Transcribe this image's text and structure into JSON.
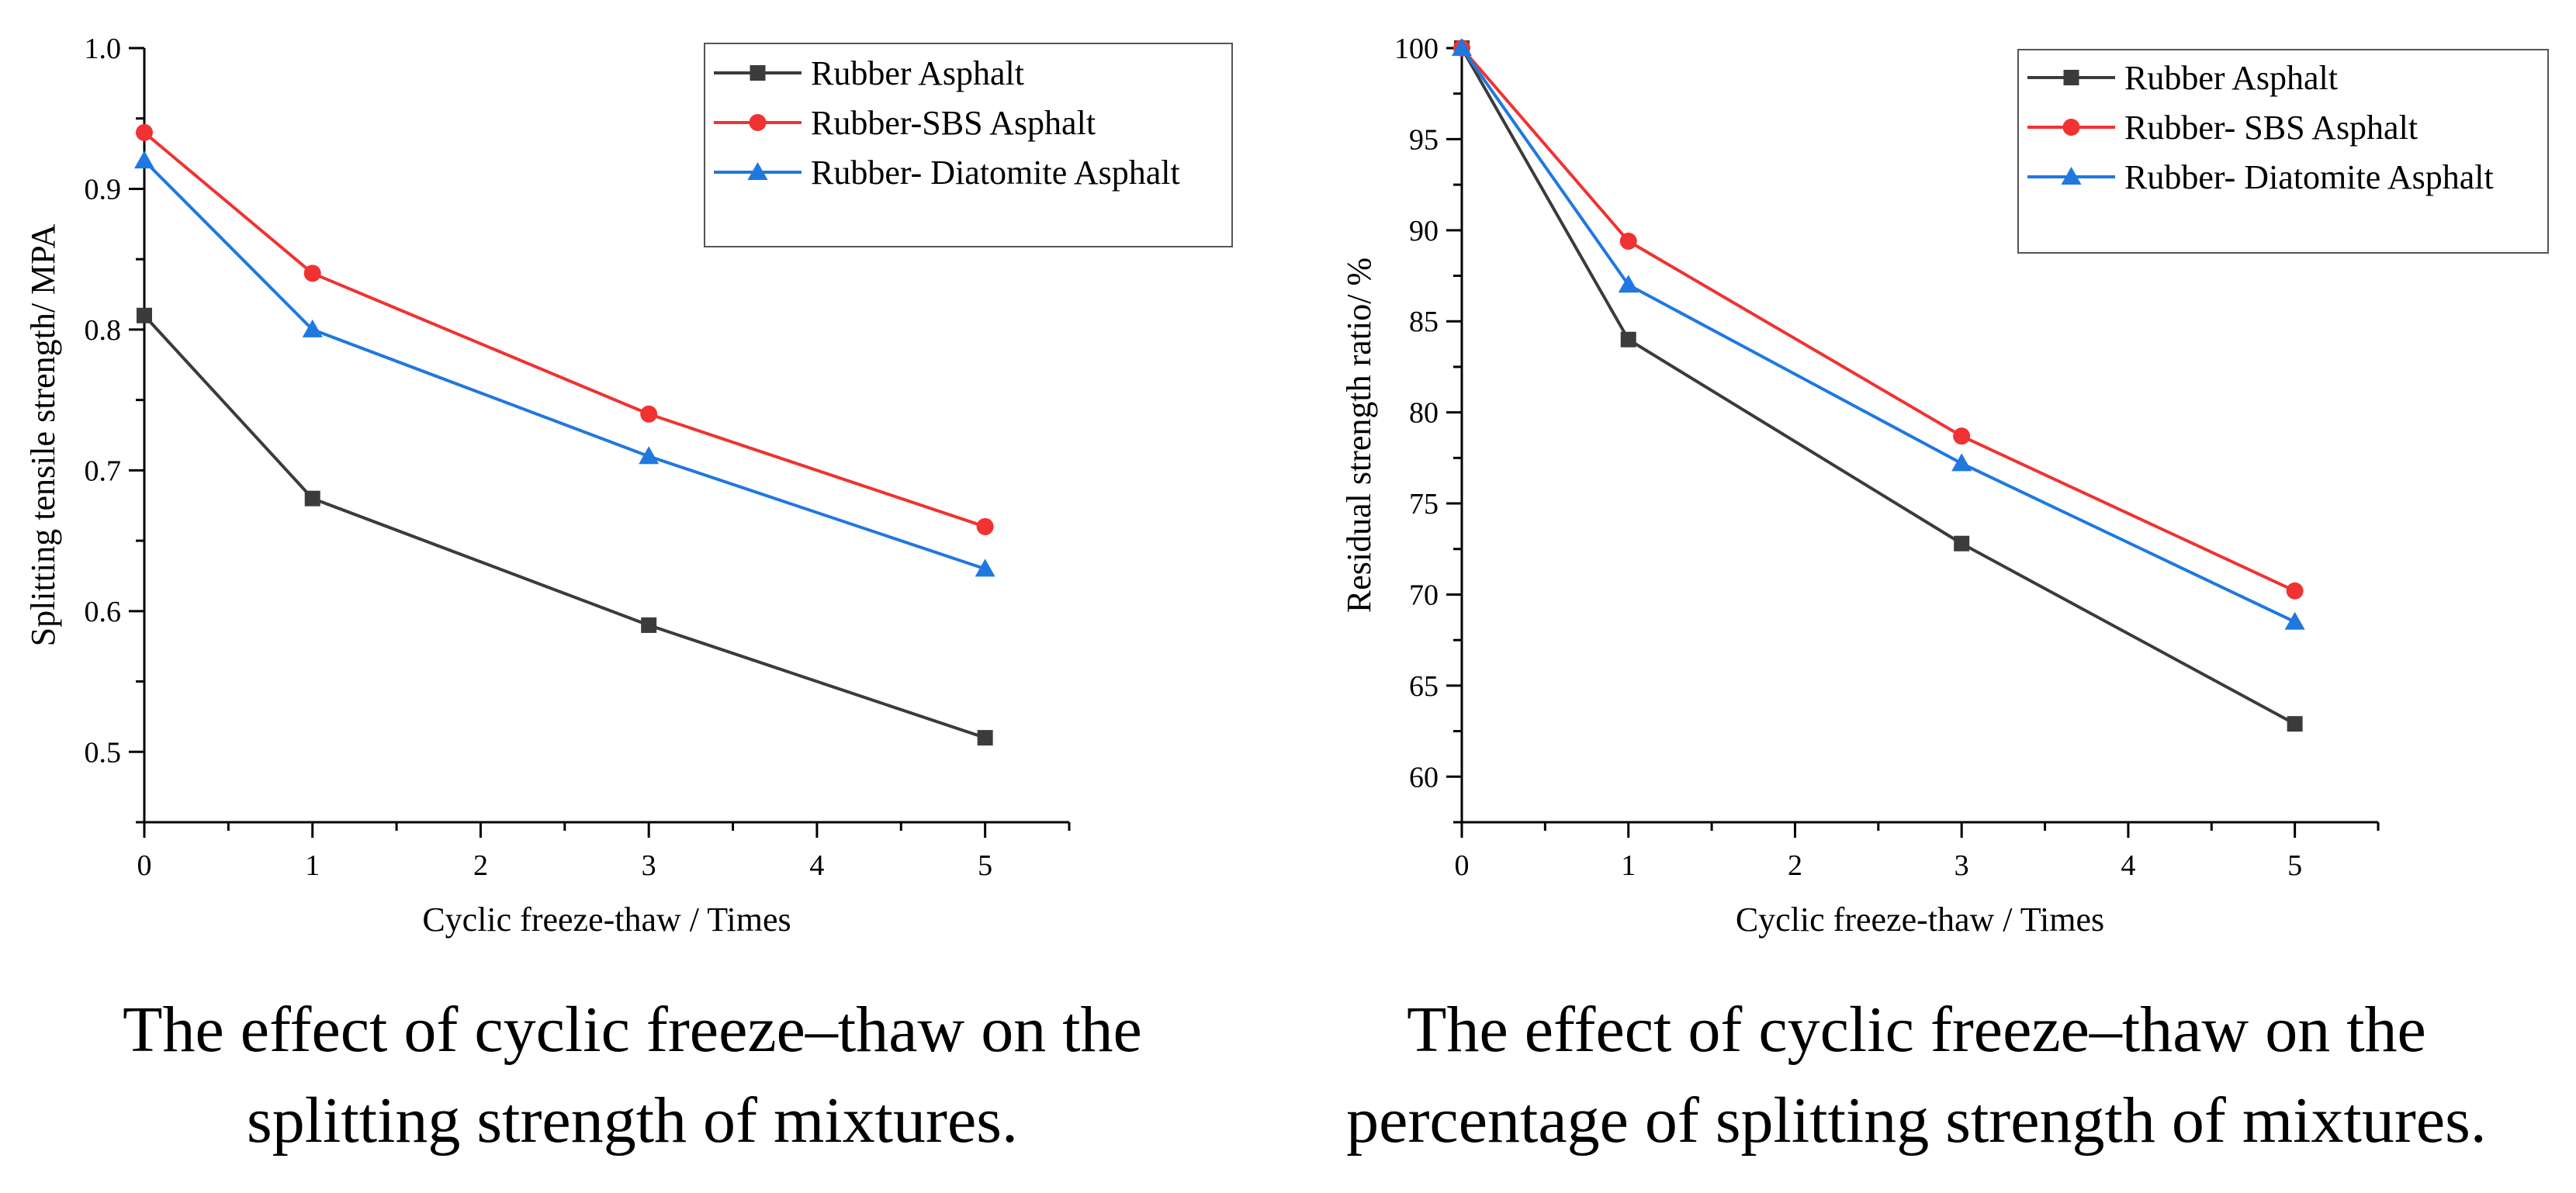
{
  "chart_data": [
    {
      "type": "line",
      "xlabel": "Cyclic freeze-thaw / Times",
      "ylabel": "Splitting tensile strength/ MPA",
      "xlim": [
        0,
        5.5
      ],
      "ylim": [
        0.45,
        1.0
      ],
      "xticks": [
        0,
        1,
        2,
        3,
        4,
        5
      ],
      "xtick_labels": [
        "0",
        "1",
        "2",
        "3",
        "4",
        "5"
      ],
      "yticks": [
        0.5,
        0.6,
        0.7,
        0.8,
        0.9,
        1.0
      ],
      "ytick_labels": [
        "0.5",
        "0.6",
        "0.7",
        "0.8",
        "0.9",
        "1.0"
      ],
      "legend_position": "top-right",
      "x": [
        0,
        1,
        3,
        5
      ],
      "series": [
        {
          "name": "Rubber Asphalt",
          "color": "#3b3b3b",
          "marker": "square",
          "values": [
            0.81,
            0.68,
            0.59,
            0.51
          ]
        },
        {
          "name": "Rubber-SBS Asphalt",
          "color": "#f03232",
          "marker": "circle",
          "values": [
            0.94,
            0.84,
            0.74,
            0.66
          ]
        },
        {
          "name": "Rubber- Diatomite Asphalt",
          "color": "#1f78e0",
          "marker": "triangle",
          "values": [
            0.92,
            0.8,
            0.71,
            0.63
          ]
        }
      ],
      "caption_lines": [
        "The effect of cyclic freeze–thaw on the",
        "splitting strength of mixtures."
      ]
    },
    {
      "type": "line",
      "xlabel": "Cyclic freeze-thaw / Times",
      "ylabel": "Residual strength ratio/  %",
      "xlim": [
        0,
        5.5
      ],
      "ylim": [
        57.5,
        100
      ],
      "xticks": [
        0,
        1,
        2,
        3,
        4,
        5
      ],
      "xtick_labels": [
        "0",
        "1",
        "2",
        "3",
        "4",
        "5"
      ],
      "yticks": [
        60,
        65,
        70,
        75,
        80,
        85,
        90,
        95,
        100
      ],
      "ytick_labels": [
        "60",
        "65",
        "70",
        "75",
        "80",
        "85",
        "90",
        "95",
        "100"
      ],
      "legend_position": "top-right",
      "x": [
        0,
        1,
        3,
        5
      ],
      "series": [
        {
          "name": "Rubber Asphalt",
          "color": "#3b3b3b",
          "marker": "square",
          "values": [
            100,
            84.0,
            72.8,
            62.9
          ]
        },
        {
          "name": "Rubber- SBS Asphalt",
          "color": "#f03232",
          "marker": "circle",
          "values": [
            100,
            89.4,
            78.7,
            70.2
          ]
        },
        {
          "name": "Rubber- Diatomite Asphalt",
          "color": "#1f78e0",
          "marker": "triangle",
          "values": [
            100,
            87.0,
            77.2,
            68.5
          ]
        }
      ],
      "caption_lines": [
        "The effect of cyclic freeze–thaw on the",
        "percentage of splitting strength of mixtures."
      ]
    }
  ]
}
